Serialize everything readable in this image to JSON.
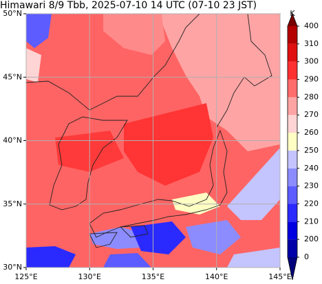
{
  "map": {
    "title": "Himawari 8/9 Tbb, 2025-07-10 14 UTC (07-10 23 JST)",
    "xlim": [
      125,
      145
    ],
    "ylim": [
      30,
      50
    ],
    "xticks": [
      {
        "value": 125,
        "label": "125°E"
      },
      {
        "value": 130,
        "label": "130°E"
      },
      {
        "value": 135,
        "label": "135°E"
      },
      {
        "value": 140,
        "label": "140°E"
      },
      {
        "value": 145,
        "label": "145°E"
      }
    ],
    "yticks": [
      {
        "value": 30,
        "label": "30°N"
      },
      {
        "value": 35,
        "label": "35°N"
      },
      {
        "value": 40,
        "label": "40°N"
      },
      {
        "value": 45,
        "label": "45°N"
      },
      {
        "value": 50,
        "label": "50°N"
      }
    ],
    "grid": true,
    "colorbar": {
      "unit": "K",
      "levels": [
        0,
        200,
        210,
        220,
        230,
        240,
        250,
        260,
        270,
        280,
        290,
        300,
        310,
        400
      ],
      "colors": [
        "#0000a8",
        "#0000e0",
        "#2a2aff",
        "#5c5cff",
        "#8c8cff",
        "#c4c4ff",
        "#ffffc4",
        "#ffd4d4",
        "#ffa4a4",
        "#ff6c6c",
        "#ff3030",
        "#e01010",
        "#b40000"
      ],
      "under_color": "#00007a",
      "over_color": "#7a0000"
    }
  }
}
